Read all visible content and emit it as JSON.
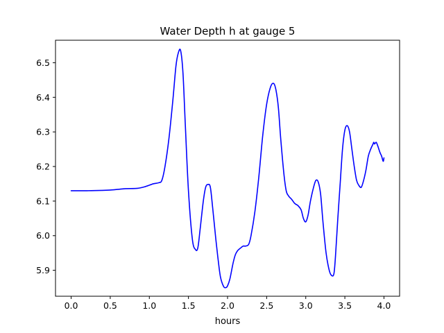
{
  "chart_data": {
    "type": "line",
    "title": "Water Depth h at gauge 5",
    "xlabel": "hours",
    "ylabel": "",
    "xlim": [
      -0.2,
      4.2
    ],
    "ylim": [
      5.825,
      6.565
    ],
    "xticks": [
      0.0,
      0.5,
      1.0,
      1.5,
      2.0,
      2.5,
      3.0,
      3.5,
      4.0
    ],
    "xtick_labels": [
      "0.0",
      "0.5",
      "1.0",
      "1.5",
      "2.0",
      "2.5",
      "3.0",
      "3.5",
      "4.0"
    ],
    "yticks": [
      5.9,
      6.0,
      6.1,
      6.2,
      6.3,
      6.4,
      6.5
    ],
    "ytick_labels": [
      "5.9",
      "6.0",
      "6.1",
      "6.2",
      "6.3",
      "6.4",
      "6.5"
    ],
    "grid": false,
    "series": [
      {
        "color": "#0000ff",
        "x": [
          0.0,
          0.2,
          0.4,
          0.5,
          0.6,
          0.7,
          0.85,
          0.95,
          1.05,
          1.12,
          1.16,
          1.2,
          1.25,
          1.3,
          1.34,
          1.37,
          1.4,
          1.43,
          1.46,
          1.5,
          1.55,
          1.59,
          1.62,
          1.65,
          1.69,
          1.72,
          1.75,
          1.78,
          1.81,
          1.85,
          1.88,
          1.91,
          1.95,
          1.98,
          2.0,
          2.03,
          2.07,
          2.1,
          2.13,
          2.17,
          2.2,
          2.23,
          2.27,
          2.3,
          2.35,
          2.4,
          2.45,
          2.5,
          2.55,
          2.59,
          2.62,
          2.65,
          2.68,
          2.72,
          2.75,
          2.78,
          2.82,
          2.86,
          2.9,
          2.94,
          2.97,
          3.0,
          3.03,
          3.06,
          3.1,
          3.13,
          3.16,
          3.19,
          3.22,
          3.26,
          3.3,
          3.33,
          3.36,
          3.38,
          3.41,
          3.44,
          3.47,
          3.5,
          3.53,
          3.56,
          3.59,
          3.62,
          3.65,
          3.68,
          3.71,
          3.74,
          3.77,
          3.8,
          3.83,
          3.86,
          3.87,
          3.88,
          3.9,
          3.92,
          3.95,
          3.97,
          3.99,
          4.0
        ],
        "y": [
          6.13,
          6.13,
          6.131,
          6.132,
          6.134,
          6.136,
          6.137,
          6.142,
          6.15,
          6.153,
          6.16,
          6.2,
          6.28,
          6.39,
          6.49,
          6.528,
          6.535,
          6.47,
          6.32,
          6.13,
          5.99,
          5.96,
          5.965,
          6.02,
          6.1,
          6.14,
          6.148,
          6.14,
          6.08,
          5.99,
          5.93,
          5.88,
          5.853,
          5.85,
          5.855,
          5.875,
          5.92,
          5.945,
          5.957,
          5.965,
          5.97,
          5.97,
          5.975,
          6.0,
          6.07,
          6.17,
          6.29,
          6.38,
          6.43,
          6.44,
          6.42,
          6.37,
          6.28,
          6.18,
          6.13,
          6.115,
          6.105,
          6.093,
          6.087,
          6.075,
          6.05,
          6.04,
          6.06,
          6.1,
          6.14,
          6.16,
          6.155,
          6.12,
          6.04,
          5.95,
          5.9,
          5.885,
          5.89,
          5.94,
          6.05,
          6.15,
          6.25,
          6.305,
          6.318,
          6.3,
          6.25,
          6.2,
          6.16,
          6.145,
          6.14,
          6.16,
          6.19,
          6.23,
          6.25,
          6.265,
          6.27,
          6.265,
          6.27,
          6.26,
          6.24,
          6.23,
          6.215,
          6.225
        ]
      }
    ]
  }
}
